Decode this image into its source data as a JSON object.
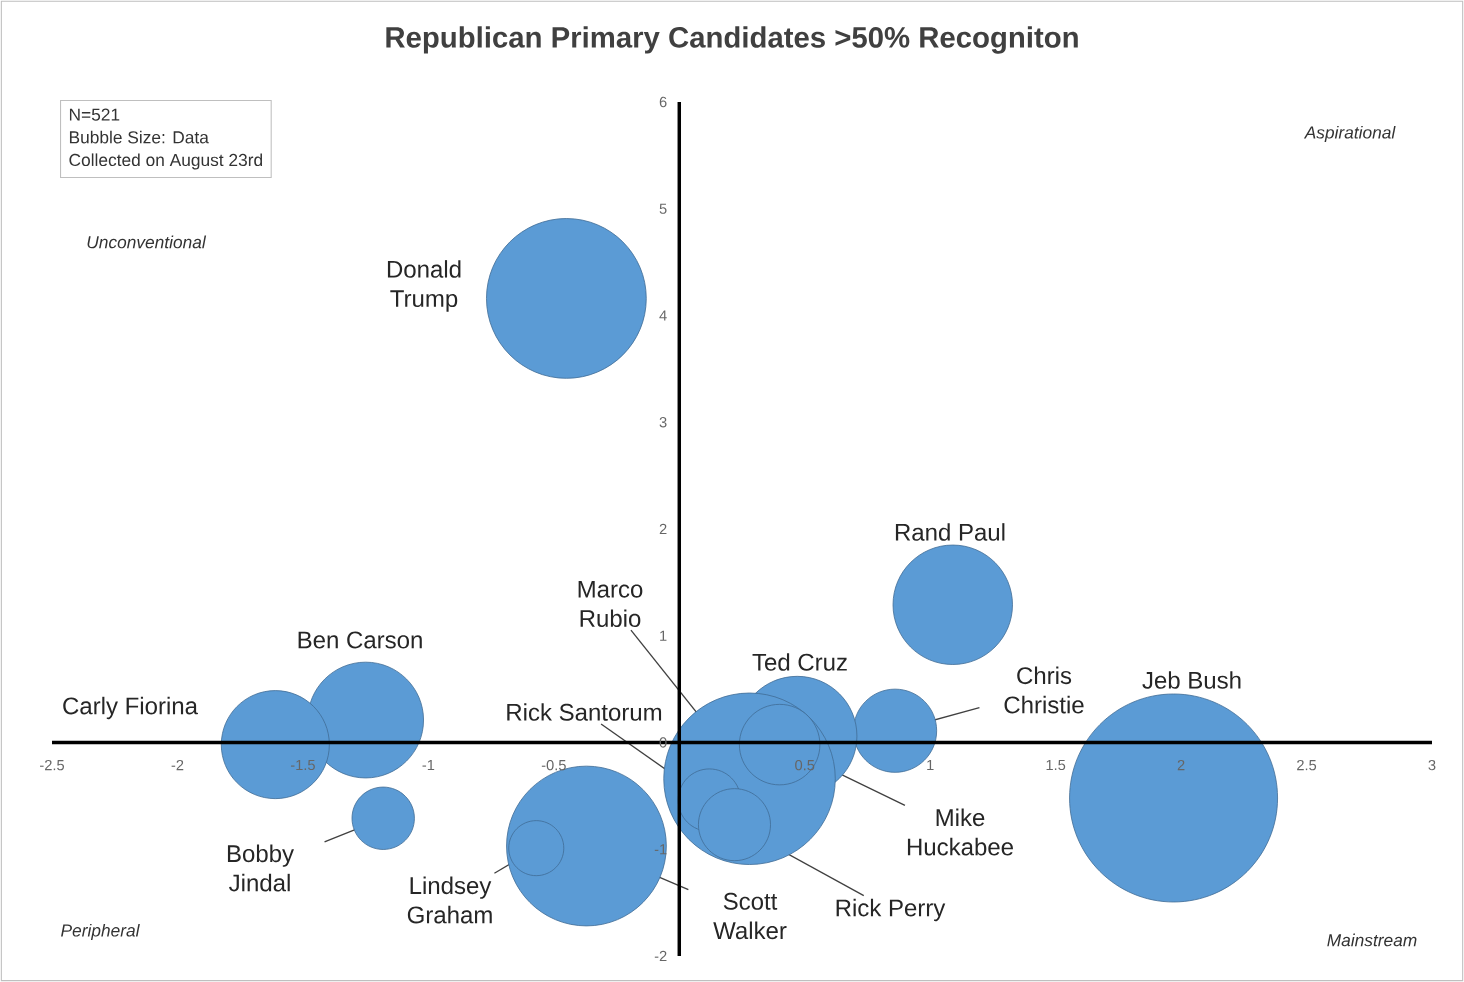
{
  "chart_data": {
    "type": "bubble",
    "title": "Republican Primary Candidates >50% Recogniton",
    "series": [
      {
        "name": "Donald Trump",
        "color": "#5b9bd5",
        "x": [
          -0.45
        ],
        "values": [
          4.16
        ],
        "sizes": [
          0.59
        ]
      },
      {
        "name": "Rand Paul",
        "color": "#5b9bd5",
        "x": [
          1.09
        ],
        "values": [
          1.29
        ],
        "sizes": [
          0.33
        ]
      },
      {
        "name": "Jeb Bush",
        "color": "#5b9bd5",
        "x": [
          1.97
        ],
        "values": [
          -0.52
        ],
        "sizes": [
          1
        ]
      },
      {
        "name": "Chris Christie",
        "color": "#5b9bd5",
        "x": [
          0.86
        ],
        "values": [
          0.11
        ],
        "sizes": [
          0.16
        ]
      },
      {
        "name": "Ted Cruz",
        "color": "#5b9bd5",
        "x": [
          0.47
        ],
        "values": [
          0.06
        ],
        "sizes": [
          0.33
        ]
      },
      {
        "name": "Marco Rubio",
        "color": "#5b9bd5",
        "x": [
          0.28
        ],
        "values": [
          -0.34
        ],
        "sizes": [
          0.68
        ]
      },
      {
        "name": "Mike Huckabee",
        "color": "#5b9bd5",
        "x": [
          0.4
        ],
        "values": [
          -0.02
        ],
        "sizes": [
          0.15
        ]
      },
      {
        "name": "Rick Santorum",
        "color": "#5b9bd5",
        "x": [
          0.12
        ],
        "values": [
          -0.54
        ],
        "sizes": [
          0.09
        ]
      },
      {
        "name": "Rick Perry",
        "color": "#5b9bd5",
        "x": [
          0.22
        ],
        "values": [
          -0.77
        ],
        "sizes": [
          0.12
        ]
      },
      {
        "name": "Scott Walker",
        "color": "#5b9bd5",
        "x": [
          -0.37
        ],
        "values": [
          -0.97
        ],
        "sizes": [
          0.59
        ]
      },
      {
        "name": "Lindsey Graham",
        "color": "#5b9bd5",
        "x": [
          -0.57
        ],
        "values": [
          -0.99
        ],
        "sizes": [
          0.07
        ]
      },
      {
        "name": "Ben Carson",
        "color": "#5b9bd5",
        "x": [
          -1.25
        ],
        "values": [
          0.21
        ],
        "sizes": [
          0.31
        ]
      },
      {
        "name": "Carly Fiorina",
        "color": "#5b9bd5",
        "x": [
          -1.61
        ],
        "values": [
          -0.02
        ],
        "sizes": [
          0.27
        ]
      },
      {
        "name": "Bobby Jindal",
        "color": "#5b9bd5",
        "x": [
          -1.18
        ],
        "values": [
          -0.71
        ],
        "sizes": [
          0.09
        ]
      }
    ],
    "xlim": [
      -2.5,
      3
    ],
    "ylim": [
      -2,
      6
    ],
    "xticks": [
      -2.5,
      -2,
      -1.5,
      -1,
      -0.5,
      0.5,
      1,
      1.5,
      2,
      2.5,
      3
    ],
    "yticks": [
      -2,
      -1,
      0,
      1,
      2,
      3,
      4,
      5,
      6
    ],
    "grid": false,
    "annotations": [
      "N=521",
      "Bubble Size: Data",
      "Collected on August 23rd",
      "Unconventional",
      "Aspirational",
      "Peripheral",
      "Mainstream"
    ]
  }
}
